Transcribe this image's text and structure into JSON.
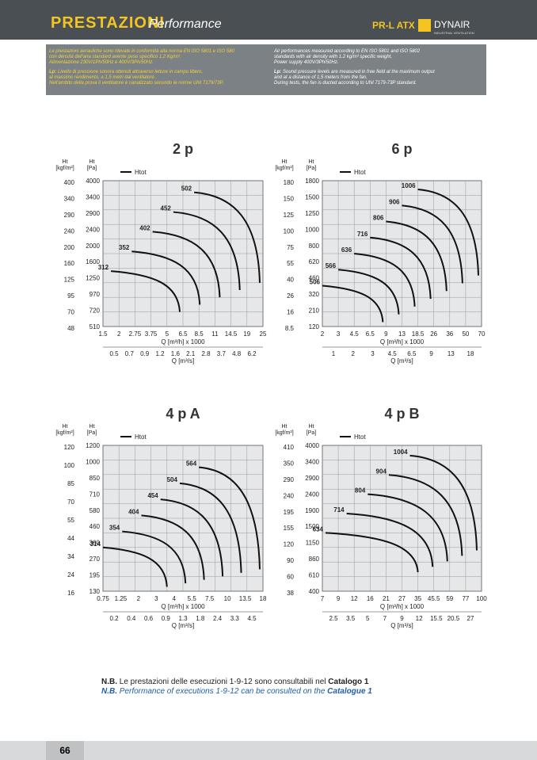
{
  "header": {
    "title": "PRESTAZIONI",
    "subtitle": "Performance",
    "model": "PR-L ATX",
    "brand": "DYNAIR",
    "brand_sub": "INDUSTRIAL VENTILATION"
  },
  "intro": {
    "it": [
      "Le prestazioni aerauliche sono rilevate in conformità alla norma EN ISO 5801 e ISO 580",
      "con densità dell'aria standard avente peso specifico 1,2 Kg/m³.",
      "Alimentazione 230V/1Ph/50Hz e 400V/3Ph/50Hz."
    ],
    "it_lp_key": "Lp:",
    "it_lp": [
      "Livello di pressione sonora ottenuti attraverso letture in campo libero,",
      "al massimo rendimento, a 1,5 metri dal ventilatore.",
      "Nell'ambito della prova il ventilatore è canalizzato secondo le norme UNI 7179/73P."
    ],
    "en": [
      "Air performances measured according to EN ISO 5801 and ISO 5802",
      "standards with air density with 1.2 kg/m³ specific weight.",
      "Power supply 400V/3Ph/50Hz."
    ],
    "en_lp_key": "Lp:",
    "en_lp": [
      "Sound pressure levels are measured in free field at the maximum output",
      "and at a distance of 1,5 meters from the fan.",
      "During tests, the fan is ducted according to UNI 7179-73P standard."
    ]
  },
  "charts": [
    {
      "title": "2 p",
      "y1_label": [
        "Ht",
        "[kgf/m²]"
      ],
      "y2_label": [
        "Ht",
        "[Pa]"
      ],
      "legend": "Htot",
      "y1_ticks": [
        "400",
        "340",
        "290",
        "240",
        "200",
        "160",
        "125",
        "95",
        "70",
        "48"
      ],
      "y2_ticks": [
        "4000",
        "3400",
        "2900",
        "2400",
        "2000",
        "1600",
        "1250",
        "970",
        "720",
        "510"
      ],
      "x_ticks": [
        "1.5",
        "2",
        "2.75",
        "3.75",
        "5",
        "6.5",
        "8.5",
        "11",
        "14.5",
        "19",
        "25"
      ],
      "x_label": "Q [m³/h] x 1000",
      "x2_ticks": [
        "0.5",
        "0.7",
        "0.9",
        "1.2",
        "1.6",
        "2.1",
        "2.8",
        "3.7",
        "4.8",
        "6.2"
      ],
      "x2_label": "Q [m³/s]",
      "curves": [
        "312",
        "352",
        "402",
        "452",
        "502"
      ]
    },
    {
      "title": "6 p",
      "y1_label": [
        "Ht",
        "[kgf/m²]"
      ],
      "y2_label": [
        "Ht",
        "[Pa]"
      ],
      "legend": "Htot",
      "y1_ticks": [
        "180",
        "150",
        "125",
        "100",
        "75",
        "55",
        "40",
        "26",
        "16",
        "8.5"
      ],
      "y2_ticks": [
        "1800",
        "1500",
        "1250",
        "1000",
        "800",
        "620",
        "460",
        "320",
        "210",
        "120"
      ],
      "x_ticks": [
        "2",
        "3",
        "4.5",
        "6.5",
        "9",
        "13",
        "18.5",
        "26",
        "36",
        "50",
        "70"
      ],
      "x_label": "Q [m³/h] x 1000",
      "x2_ticks": [
        "1",
        "2",
        "3",
        "4.5",
        "6.5",
        "9",
        "13",
        "18"
      ],
      "x2_label": "Q [m³/s]",
      "curves": [
        "506",
        "566",
        "636",
        "716",
        "806",
        "906",
        "1006"
      ]
    },
    {
      "title": "4 p A",
      "y1_label": [
        "Ht",
        "[kgf/m²]"
      ],
      "y2_label": [
        "Ht",
        "[Pa]"
      ],
      "legend": "Htot",
      "y1_ticks": [
        "120",
        "100",
        "85",
        "70",
        "55",
        "44",
        "34",
        "24",
        "16"
      ],
      "y2_ticks": [
        "1200",
        "1000",
        "850",
        "710",
        "580",
        "460",
        "360",
        "270",
        "195",
        "130"
      ],
      "x_ticks": [
        "0.75",
        "1.25",
        "2",
        "3",
        "4",
        "5.5",
        "7.5",
        "10",
        "13.5",
        "18"
      ],
      "x_label": "Q [m³/h] x 1000",
      "x2_ticks": [
        "0.2",
        "0.4",
        "0.6",
        "0.9",
        "1.3",
        "1.8",
        "2.4",
        "3.3",
        "4.5"
      ],
      "x2_label": "Q [m³/s]",
      "curves": [
        "314",
        "354",
        "404",
        "454",
        "504",
        "564"
      ]
    },
    {
      "title": "4 p B",
      "y1_label": [
        "Ht",
        "[kgf/m²]"
      ],
      "y2_label": [
        "Ht",
        "[Pa]"
      ],
      "legend": "Htot",
      "y1_ticks": [
        "410",
        "350",
        "290",
        "240",
        "195",
        "155",
        "120",
        "90",
        "60",
        "38"
      ],
      "y2_ticks": [
        "4000",
        "3400",
        "2900",
        "2400",
        "1900",
        "1500",
        "1150",
        "860",
        "610",
        "400"
      ],
      "x_ticks": [
        "7",
        "9",
        "12",
        "16",
        "21",
        "27",
        "35",
        "45.5",
        "59",
        "77",
        "100"
      ],
      "x_label": "Q [m³/h] x 1000",
      "x2_ticks": [
        "2.5",
        "3.5",
        "5",
        "7",
        "9",
        "12",
        "15.5",
        "20.5",
        "27"
      ],
      "x2_label": "Q [m³/s]",
      "curves": [
        "634",
        "714",
        "804",
        "904",
        "1004"
      ]
    }
  ],
  "note": {
    "it_key": "N.B.",
    "it_text": "Le prestazioni delle esecuzioni 1-9-12 sono consultabili nel",
    "it_bold": "Catalogo 1",
    "en_key": "N.B.",
    "en_text": "Performance of executions 1-9-12 can be consulted on the",
    "en_bold": "Catalogue 1"
  },
  "footer": {
    "page": "66"
  }
}
